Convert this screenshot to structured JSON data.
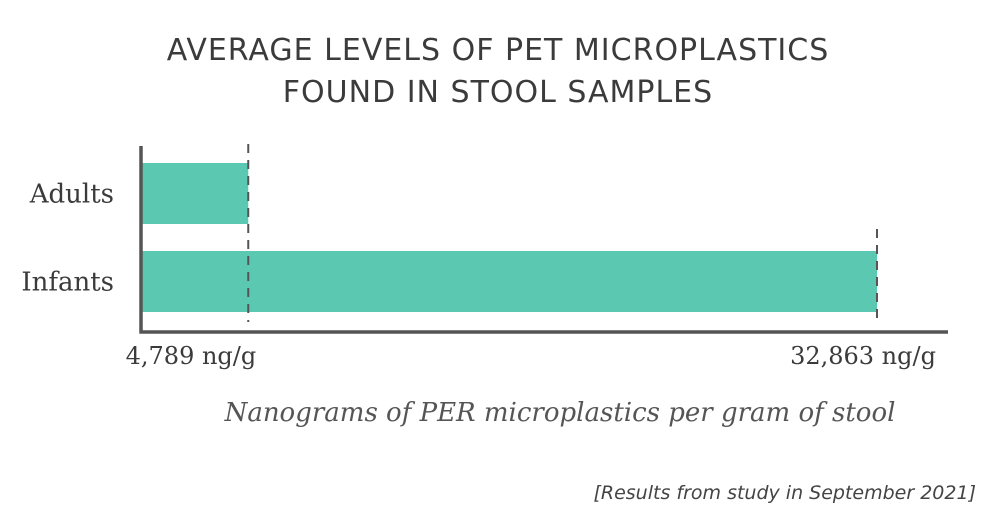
{
  "chart_data": {
    "type": "bar",
    "orientation": "horizontal",
    "title": "AVERAGE LEVELS OF PET MICROPLASTICS FOUND IN STOOL SAMPLES",
    "title_lines": [
      "AVERAGE LEVELS OF PET MICROPLASTICS",
      "FOUND IN STOOL SAMPLES"
    ],
    "categories": [
      "Adults",
      "Infants"
    ],
    "values": [
      4789,
      32863
    ],
    "value_labels": [
      "4,789 ng/g",
      "32,863 ng/g"
    ],
    "xlabel": "Nanograms of PER microplastics per gram of stool",
    "ylabel": "",
    "grid": false,
    "bar_color": "#5bc9b1",
    "axis_color": "#555555"
  },
  "footnote": "[Results from study in September 2021]"
}
